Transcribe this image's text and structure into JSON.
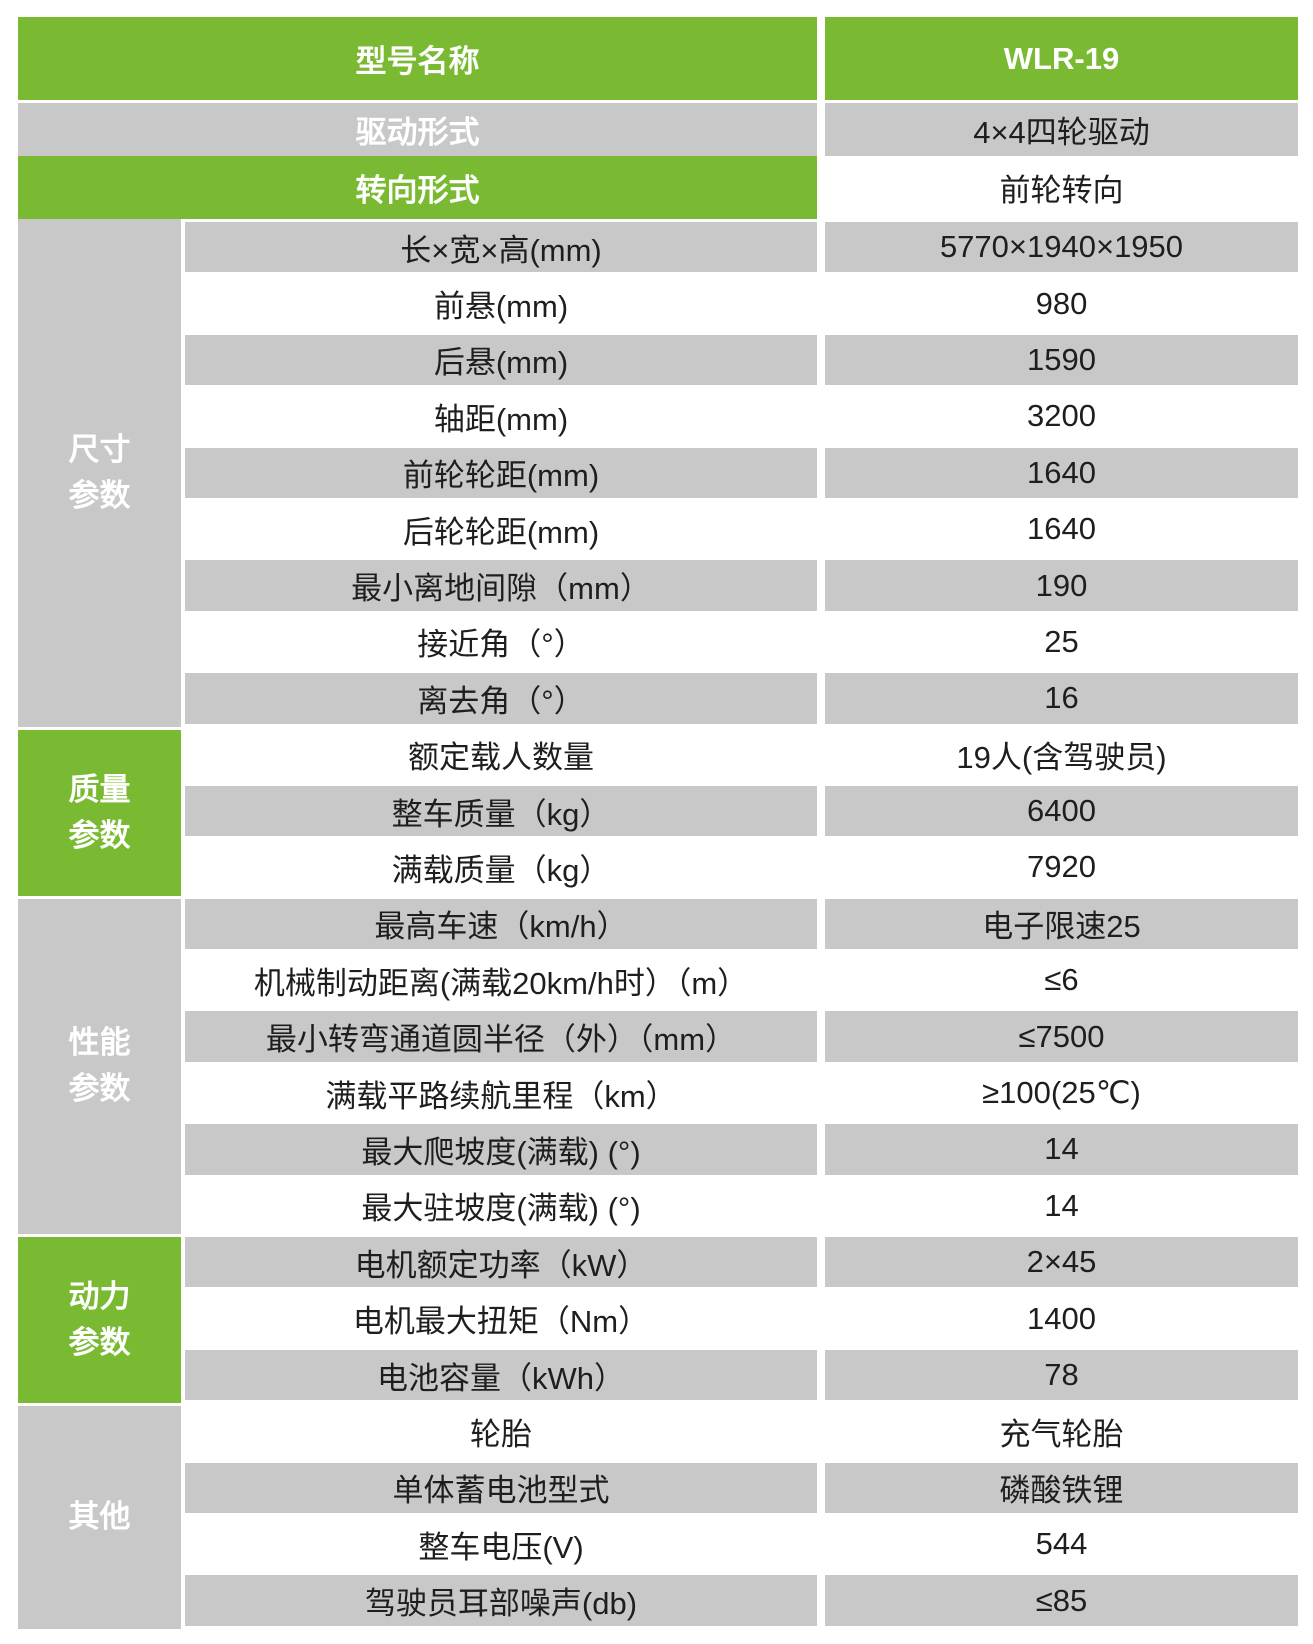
{
  "colors": {
    "green": "#7aba32",
    "gray": "#c8c8c8",
    "white": "#ffffff"
  },
  "header": {
    "label": "型号名称",
    "value": "WLR-19"
  },
  "top_rows": [
    {
      "label": "驱动形式",
      "value": "4×4四轮驱动"
    },
    {
      "label": "转向形式",
      "value": "前轮转向"
    }
  ],
  "groups": [
    {
      "name": "尺寸\n参数",
      "color": "gray",
      "rows": [
        {
          "label": "长×宽×高(mm)",
          "value": "5770×1940×1950"
        },
        {
          "label": "前悬(mm)",
          "value": "980"
        },
        {
          "label": "后悬(mm)",
          "value": "1590"
        },
        {
          "label": "轴距(mm)",
          "value": "3200"
        },
        {
          "label": "前轮轮距(mm)",
          "value": "1640"
        },
        {
          "label": "后轮轮距(mm)",
          "value": "1640"
        },
        {
          "label": "最小离地间隙（mm）",
          "value": "190"
        },
        {
          "label": "接近角（°）",
          "value": "25"
        },
        {
          "label": "离去角（°）",
          "value": "16"
        }
      ]
    },
    {
      "name": "质量\n参数",
      "color": "green",
      "rows": [
        {
          "label": "额定载人数量",
          "value": "19人(含驾驶员)"
        },
        {
          "label": "整车质量（kg）",
          "value": "6400"
        },
        {
          "label": "满载质量（kg）",
          "value": "7920"
        }
      ]
    },
    {
      "name": "性能\n参数",
      "color": "gray",
      "rows": [
        {
          "label": "最高车速（km/h）",
          "value": "电子限速25"
        },
        {
          "label": "机械制动距离(满载20km/h时）（m）",
          "value": "≤6"
        },
        {
          "label": "最小转弯通道圆半径（外）（mm）",
          "value": "≤7500"
        },
        {
          "label": "满载平路续航里程（km）",
          "value": "≥100(25℃)"
        },
        {
          "label": "最大爬坡度(满载) (°)",
          "value": "14"
        },
        {
          "label": "最大驻坡度(满载) (°)",
          "value": "14"
        }
      ]
    },
    {
      "name": "动力\n参数",
      "color": "green",
      "rows": [
        {
          "label": "电机额定功率（kW）",
          "value": "2×45"
        },
        {
          "label": "电机最大扭矩（Nm）",
          "value": "1400"
        },
        {
          "label": "电池容量（kWh）",
          "value": "78"
        }
      ]
    },
    {
      "name": "其他",
      "color": "gray",
      "rows": [
        {
          "label": "轮胎",
          "value": "充气轮胎"
        },
        {
          "label": "单体蓄电池型式",
          "value": "磷酸铁锂"
        },
        {
          "label": "整车电压(V)",
          "value": "544"
        },
        {
          "label": "驾驶员耳部噪声(db)",
          "value": "≤85"
        }
      ]
    }
  ]
}
